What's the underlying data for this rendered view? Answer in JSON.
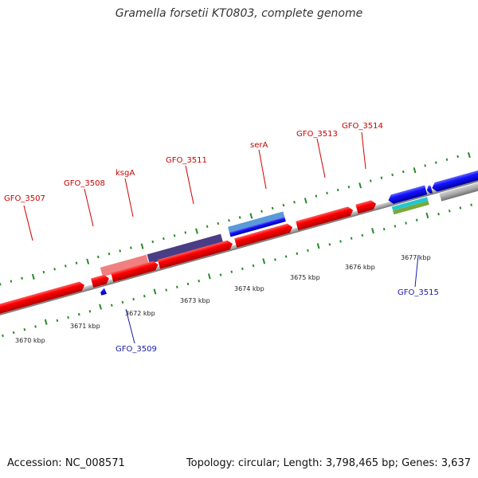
{
  "title": "Gramella forsetii KT0803, complete genome",
  "footer": {
    "accession": "Accession: NC_008571",
    "stats": "Topology: circular; Length: 3,798,465 bp; Genes: 3,637"
  },
  "scale_labels": [
    "3670 kbp",
    "3671 kbp",
    "3672 kbp",
    "3673 kbp",
    "3674 kbp",
    "3675 kbp",
    "3676 kbp",
    "3677 kbp"
  ],
  "gene_labels_top": [
    "GFO_3507",
    "GFO_3508",
    "ksgA",
    "GFO_3511",
    "serA",
    "GFO_3513",
    "GFO_3514"
  ],
  "gene_labels_bottom": [
    "GFO_3509",
    "GFO_3515"
  ],
  "colors": {
    "forward_cds": "#ee0000",
    "reverse_cds": "#1010ee",
    "backbone": "#888888",
    "tick": "#2a8a2a",
    "label_top": "#cc0000",
    "label_bottom": "#1a1aaa"
  }
}
